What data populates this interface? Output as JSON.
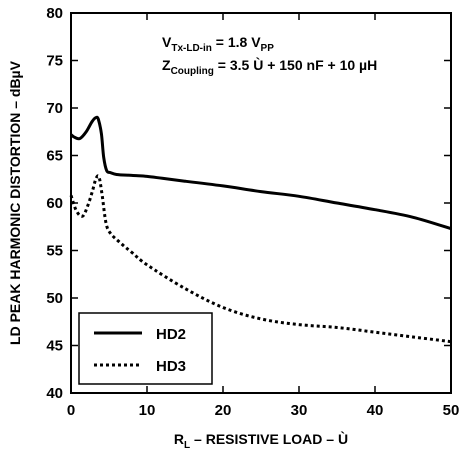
{
  "chart_data": {
    "type": "line",
    "xlabel": {
      "main": "R",
      "sub": "L",
      "rest": " – RESISTIVE LOAD – Ù"
    },
    "ylabel": "LD PEAK HARMONIC DISTORTION – dBµV",
    "xlim": [
      0,
      50
    ],
    "ylim": [
      40,
      80
    ],
    "x_ticks": [
      0,
      10,
      20,
      30,
      40,
      50
    ],
    "y_ticks": [
      40,
      45,
      50,
      55,
      60,
      65,
      70,
      75,
      80
    ],
    "grid": false,
    "legend_position": "bottom-left",
    "annotations": [
      {
        "main": "V",
        "sub": "Tx-LD-in",
        "rest": " = 1.8 V",
        "sub2": "PP"
      },
      {
        "main": "Z",
        "sub": "Coupling",
        "rest": " = 3.5 Ù + 150 nF + 10 µH",
        "sub2": ""
      }
    ],
    "series": [
      {
        "name": "HD2",
        "style": "solid",
        "x": [
          0,
          0.5,
          1.2,
          2,
          2.8,
          3.3,
          3.6,
          4.0,
          4.3,
          4.7,
          5.2,
          6,
          8,
          10,
          12,
          15,
          20,
          25,
          30,
          35,
          40,
          45,
          50
        ],
        "y": [
          67.2,
          66.9,
          66.8,
          67.5,
          68.6,
          69.0,
          68.8,
          67.3,
          64.8,
          63.4,
          63.2,
          63.0,
          62.9,
          62.8,
          62.6,
          62.3,
          61.8,
          61.2,
          60.7,
          60.0,
          59.3,
          58.5,
          57.3
        ]
      },
      {
        "name": "HD3",
        "style": "dotted",
        "x": [
          0,
          0.7,
          1.5,
          2.2,
          2.8,
          3.3,
          3.7,
          4.1,
          4.6,
          5.2,
          6.5,
          8,
          10,
          15,
          20,
          25,
          30,
          35,
          40,
          45,
          50
        ],
        "y": [
          60.8,
          59.2,
          58.6,
          59.7,
          61.2,
          62.6,
          62.7,
          60.8,
          57.9,
          56.8,
          55.8,
          54.8,
          53.5,
          51.0,
          49.0,
          47.8,
          47.2,
          46.9,
          46.4,
          45.9,
          45.4
        ]
      }
    ]
  }
}
